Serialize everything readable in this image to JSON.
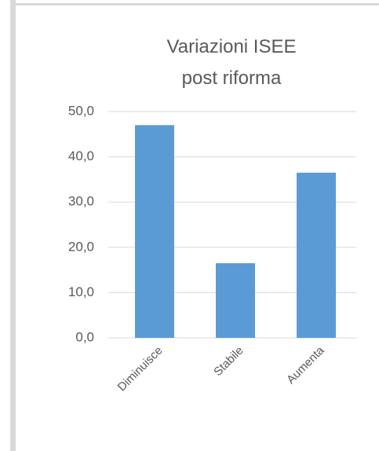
{
  "chart_data": {
    "type": "bar",
    "title": "Variazioni ISEE\npost riforma",
    "categories": [
      "Diminuisce",
      "Stabile",
      "Aumenta"
    ],
    "values": [
      47,
      16.5,
      36.5
    ],
    "color": "#5b9bd5",
    "ylim": [
      0,
      50
    ],
    "yticks": [
      {
        "value": 0,
        "label": "0,0"
      },
      {
        "value": 10,
        "label": "10,0"
      },
      {
        "value": 20,
        "label": "20,0"
      },
      {
        "value": 30,
        "label": "30,0"
      },
      {
        "value": 40,
        "label": "40,0"
      },
      {
        "value": 50,
        "label": "50,0"
      }
    ],
    "grid": true
  }
}
